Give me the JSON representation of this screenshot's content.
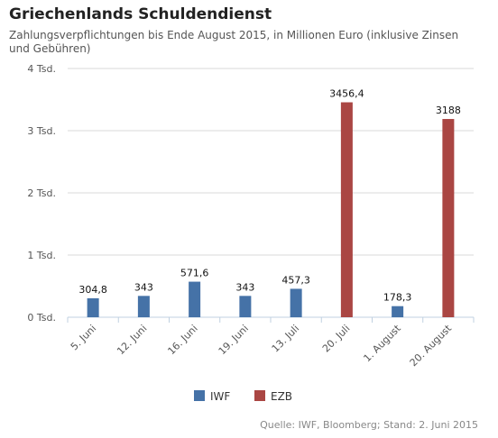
{
  "header": {
    "title": "Griechenlands Schuldendienst",
    "subtitle": "Zahlungsverpflichtungen bis Ende August 2015, in Millionen Euro (inklusive Zinsen und Gebühren)"
  },
  "source": "Quelle: IWF, Bloomberg; Stand: 2. Juni 2015",
  "chart_data": {
    "type": "bar",
    "title": "Griechenlands Schuldendienst",
    "subtitle": "Zahlungsverpflichtungen bis Ende August 2015, in Millionen Euro (inklusive Zinsen und Gebühren)",
    "xlabel": "",
    "ylabel": "",
    "ylim": [
      0,
      4000
    ],
    "yticks": [
      0,
      1000,
      2000,
      3000,
      4000
    ],
    "ytick_labels": [
      "0 Tsd.",
      "1 Tsd.",
      "2 Tsd.",
      "3 Tsd.",
      "4 Tsd."
    ],
    "grid": true,
    "legend_position": "bottom",
    "categories": [
      "5. Juni",
      "12. Juni",
      "16. Juni",
      "19. Juni",
      "13. Juli",
      "20. Juli",
      "1. August",
      "20. August"
    ],
    "series": [
      {
        "name": "IWF",
        "color": "#4572a7",
        "values": [
          304.8,
          343,
          571.6,
          343,
          457.3,
          null,
          178.3,
          null
        ]
      },
      {
        "name": "EZB",
        "color": "#aa4643",
        "values": [
          null,
          null,
          null,
          null,
          null,
          3456.4,
          null,
          3188
        ]
      }
    ],
    "data_labels": [
      "304,8",
      "343",
      "571,6",
      "343",
      "457,3",
      "3456,4",
      "178,3",
      "3188"
    ]
  }
}
